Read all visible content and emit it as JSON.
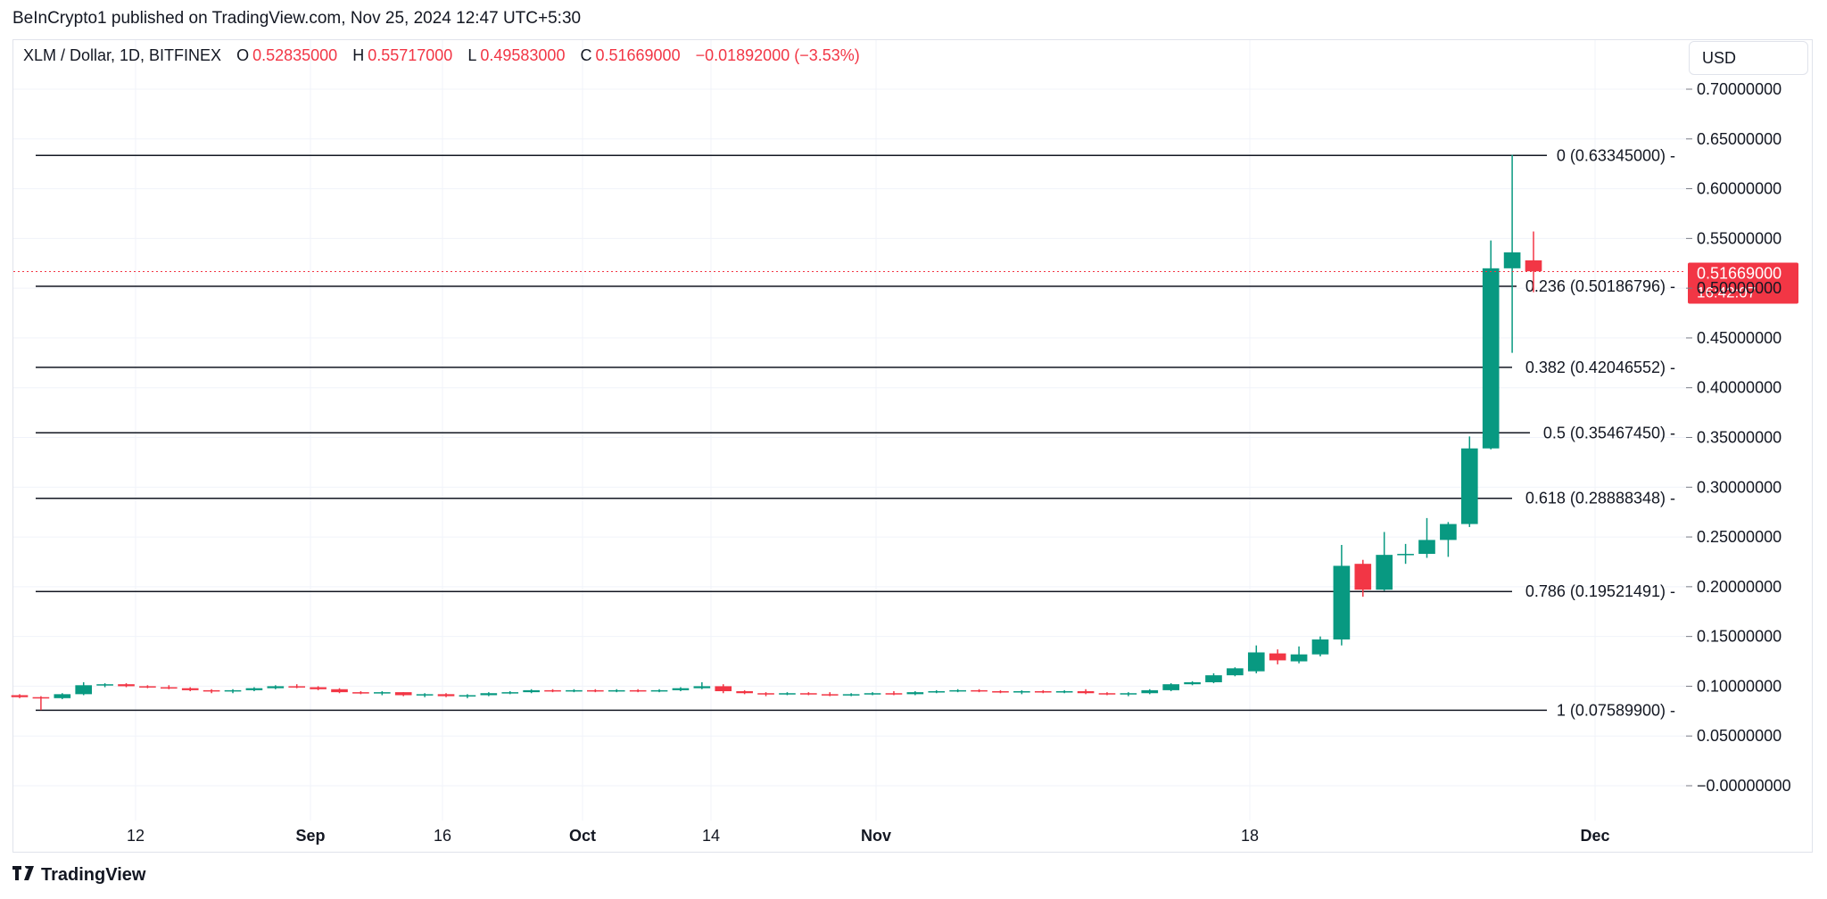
{
  "attribution": "BeInCrypto1 published on TradingView.com, Nov 25, 2024 12:47 UTC+5:30",
  "legend": {
    "symbol": "XLM / Dollar, 1D, BITFINEX",
    "o_label": "O",
    "o_value": "0.52835000",
    "h_label": "H",
    "h_value": "0.55717000",
    "l_label": "L",
    "l_value": "0.49583000",
    "c_label": "C",
    "c_value": "0.51669000",
    "change": "−0.01892000 (−3.53%)"
  },
  "currency": "USD",
  "footer": {
    "brand": "TradingView",
    "logo_icon": "tradingview-logo-icon"
  },
  "colors": {
    "up": "#089981",
    "down": "#f23645",
    "fib_line": "#131722",
    "price_line": "#f23645",
    "grid": "#f0f3fa"
  },
  "price_label": {
    "value": "0.51669000",
    "countdown": "16:42:07"
  },
  "chart_data": {
    "type": "candlestick",
    "title": "XLM / Dollar, 1D, BITFINEX",
    "ylim": [
      -0.025,
      0.72
    ],
    "x_ticks": [
      "12",
      "Sep",
      "16",
      "Oct",
      "14",
      "Nov",
      "18",
      "Dec"
    ],
    "y_ticks": [
      "0.70000000",
      "0.65000000",
      "0.60000000",
      "0.55000000",
      "0.50000000",
      "0.45000000",
      "0.40000000",
      "0.35000000",
      "0.30000000",
      "0.25000000",
      "0.20000000",
      "0.15000000",
      "0.10000000",
      "0.05000000",
      "−0.00000000"
    ],
    "y_tick_values": [
      0.7,
      0.65,
      0.6,
      0.55,
      0.5,
      0.45,
      0.4,
      0.35,
      0.3,
      0.25,
      0.2,
      0.15,
      0.1,
      0.05,
      0.0
    ],
    "grid": true,
    "fib_levels": [
      {
        "ratio": 0,
        "price": 0.63345,
        "label": "0 (0.63345000)"
      },
      {
        "ratio": 0.236,
        "price": 0.50186796,
        "label": "0.236 (0.50186796)"
      },
      {
        "ratio": 0.382,
        "price": 0.42046552,
        "label": "0.382 (0.42046552)"
      },
      {
        "ratio": 0.5,
        "price": 0.3546745,
        "label": "0.5 (0.35467450)"
      },
      {
        "ratio": 0.618,
        "price": 0.28888348,
        "label": "0.618 (0.28888348)"
      },
      {
        "ratio": 0.786,
        "price": 0.19521491,
        "label": "0.786 (0.19521491)"
      },
      {
        "ratio": 1,
        "price": 0.075899,
        "label": "1 (0.07589900)"
      }
    ],
    "current_price": 0.51669,
    "candles": [
      {
        "o": 0.091,
        "h": 0.092,
        "l": 0.088,
        "c": 0.089
      },
      {
        "o": 0.089,
        "h": 0.09,
        "l": 0.076,
        "c": 0.088
      },
      {
        "o": 0.088,
        "h": 0.093,
        "l": 0.087,
        "c": 0.092
      },
      {
        "o": 0.092,
        "h": 0.104,
        "l": 0.091,
        "c": 0.101
      },
      {
        "o": 0.101,
        "h": 0.103,
        "l": 0.099,
        "c": 0.102
      },
      {
        "o": 0.102,
        "h": 0.103,
        "l": 0.099,
        "c": 0.1
      },
      {
        "o": 0.1,
        "h": 0.101,
        "l": 0.098,
        "c": 0.099
      },
      {
        "o": 0.099,
        "h": 0.101,
        "l": 0.097,
        "c": 0.098
      },
      {
        "o": 0.098,
        "h": 0.099,
        "l": 0.095,
        "c": 0.096
      },
      {
        "o": 0.096,
        "h": 0.097,
        "l": 0.093,
        "c": 0.095
      },
      {
        "o": 0.095,
        "h": 0.097,
        "l": 0.093,
        "c": 0.096
      },
      {
        "o": 0.096,
        "h": 0.099,
        "l": 0.095,
        "c": 0.098
      },
      {
        "o": 0.098,
        "h": 0.101,
        "l": 0.097,
        "c": 0.1
      },
      {
        "o": 0.1,
        "h": 0.102,
        "l": 0.098,
        "c": 0.099
      },
      {
        "o": 0.099,
        "h": 0.1,
        "l": 0.096,
        "c": 0.097
      },
      {
        "o": 0.097,
        "h": 0.098,
        "l": 0.093,
        "c": 0.094
      },
      {
        "o": 0.094,
        "h": 0.095,
        "l": 0.092,
        "c": 0.093
      },
      {
        "o": 0.093,
        "h": 0.095,
        "l": 0.091,
        "c": 0.094
      },
      {
        "o": 0.094,
        "h": 0.094,
        "l": 0.09,
        "c": 0.091
      },
      {
        "o": 0.091,
        "h": 0.093,
        "l": 0.089,
        "c": 0.092
      },
      {
        "o": 0.092,
        "h": 0.093,
        "l": 0.089,
        "c": 0.09
      },
      {
        "o": 0.09,
        "h": 0.092,
        "l": 0.088,
        "c": 0.091
      },
      {
        "o": 0.091,
        "h": 0.094,
        "l": 0.09,
        "c": 0.093
      },
      {
        "o": 0.093,
        "h": 0.095,
        "l": 0.092,
        "c": 0.094
      },
      {
        "o": 0.094,
        "h": 0.097,
        "l": 0.093,
        "c": 0.096
      },
      {
        "o": 0.096,
        "h": 0.097,
        "l": 0.094,
        "c": 0.095
      },
      {
        "o": 0.095,
        "h": 0.097,
        "l": 0.094,
        "c": 0.096
      },
      {
        "o": 0.096,
        "h": 0.097,
        "l": 0.094,
        "c": 0.095
      },
      {
        "o": 0.095,
        "h": 0.097,
        "l": 0.094,
        "c": 0.096
      },
      {
        "o": 0.096,
        "h": 0.097,
        "l": 0.094,
        "c": 0.095
      },
      {
        "o": 0.095,
        "h": 0.097,
        "l": 0.094,
        "c": 0.096
      },
      {
        "o": 0.096,
        "h": 0.099,
        "l": 0.095,
        "c": 0.098
      },
      {
        "o": 0.098,
        "h": 0.104,
        "l": 0.097,
        "c": 0.1
      },
      {
        "o": 0.1,
        "h": 0.102,
        "l": 0.093,
        "c": 0.095
      },
      {
        "o": 0.095,
        "h": 0.096,
        "l": 0.092,
        "c": 0.093
      },
      {
        "o": 0.093,
        "h": 0.094,
        "l": 0.09,
        "c": 0.092
      },
      {
        "o": 0.092,
        "h": 0.094,
        "l": 0.091,
        "c": 0.093
      },
      {
        "o": 0.093,
        "h": 0.094,
        "l": 0.091,
        "c": 0.092
      },
      {
        "o": 0.092,
        "h": 0.094,
        "l": 0.09,
        "c": 0.091
      },
      {
        "o": 0.091,
        "h": 0.093,
        "l": 0.09,
        "c": 0.092
      },
      {
        "o": 0.092,
        "h": 0.094,
        "l": 0.091,
        "c": 0.093
      },
      {
        "o": 0.093,
        "h": 0.095,
        "l": 0.091,
        "c": 0.092
      },
      {
        "o": 0.092,
        "h": 0.095,
        "l": 0.091,
        "c": 0.094
      },
      {
        "o": 0.094,
        "h": 0.096,
        "l": 0.093,
        "c": 0.095
      },
      {
        "o": 0.095,
        "h": 0.097,
        "l": 0.094,
        "c": 0.096
      },
      {
        "o": 0.096,
        "h": 0.097,
        "l": 0.094,
        "c": 0.095
      },
      {
        "o": 0.095,
        "h": 0.096,
        "l": 0.093,
        "c": 0.094
      },
      {
        "o": 0.094,
        "h": 0.096,
        "l": 0.092,
        "c": 0.095
      },
      {
        "o": 0.095,
        "h": 0.096,
        "l": 0.093,
        "c": 0.094
      },
      {
        "o": 0.094,
        "h": 0.096,
        "l": 0.093,
        "c": 0.095
      },
      {
        "o": 0.095,
        "h": 0.097,
        "l": 0.092,
        "c": 0.093
      },
      {
        "o": 0.093,
        "h": 0.094,
        "l": 0.091,
        "c": 0.092
      },
      {
        "o": 0.092,
        "h": 0.094,
        "l": 0.09,
        "c": 0.093
      },
      {
        "o": 0.093,
        "h": 0.097,
        "l": 0.092,
        "c": 0.096
      },
      {
        "o": 0.096,
        "h": 0.103,
        "l": 0.095,
        "c": 0.102
      },
      {
        "o": 0.102,
        "h": 0.105,
        "l": 0.101,
        "c": 0.104
      },
      {
        "o": 0.104,
        "h": 0.113,
        "l": 0.103,
        "c": 0.111
      },
      {
        "o": 0.111,
        "h": 0.119,
        "l": 0.11,
        "c": 0.118
      },
      {
        "o": 0.115,
        "h": 0.141,
        "l": 0.113,
        "c": 0.134
      },
      {
        "o": 0.133,
        "h": 0.137,
        "l": 0.122,
        "c": 0.126
      },
      {
        "o": 0.125,
        "h": 0.14,
        "l": 0.123,
        "c": 0.132
      },
      {
        "o": 0.132,
        "h": 0.15,
        "l": 0.13,
        "c": 0.147
      },
      {
        "o": 0.147,
        "h": 0.242,
        "l": 0.141,
        "c": 0.221
      },
      {
        "o": 0.223,
        "h": 0.227,
        "l": 0.19,
        "c": 0.197
      },
      {
        "o": 0.197,
        "h": 0.255,
        "l": 0.196,
        "c": 0.232
      },
      {
        "o": 0.232,
        "h": 0.243,
        "l": 0.223,
        "c": 0.233
      },
      {
        "o": 0.233,
        "h": 0.269,
        "l": 0.229,
        "c": 0.247
      },
      {
        "o": 0.247,
        "h": 0.265,
        "l": 0.23,
        "c": 0.263
      },
      {
        "o": 0.263,
        "h": 0.351,
        "l": 0.26,
        "c": 0.339
      },
      {
        "o": 0.339,
        "h": 0.548,
        "l": 0.338,
        "c": 0.52
      },
      {
        "o": 0.52,
        "h": 0.634,
        "l": 0.435,
        "c": 0.536
      },
      {
        "o": 0.528,
        "h": 0.557,
        "l": 0.496,
        "c": 0.517
      }
    ]
  }
}
